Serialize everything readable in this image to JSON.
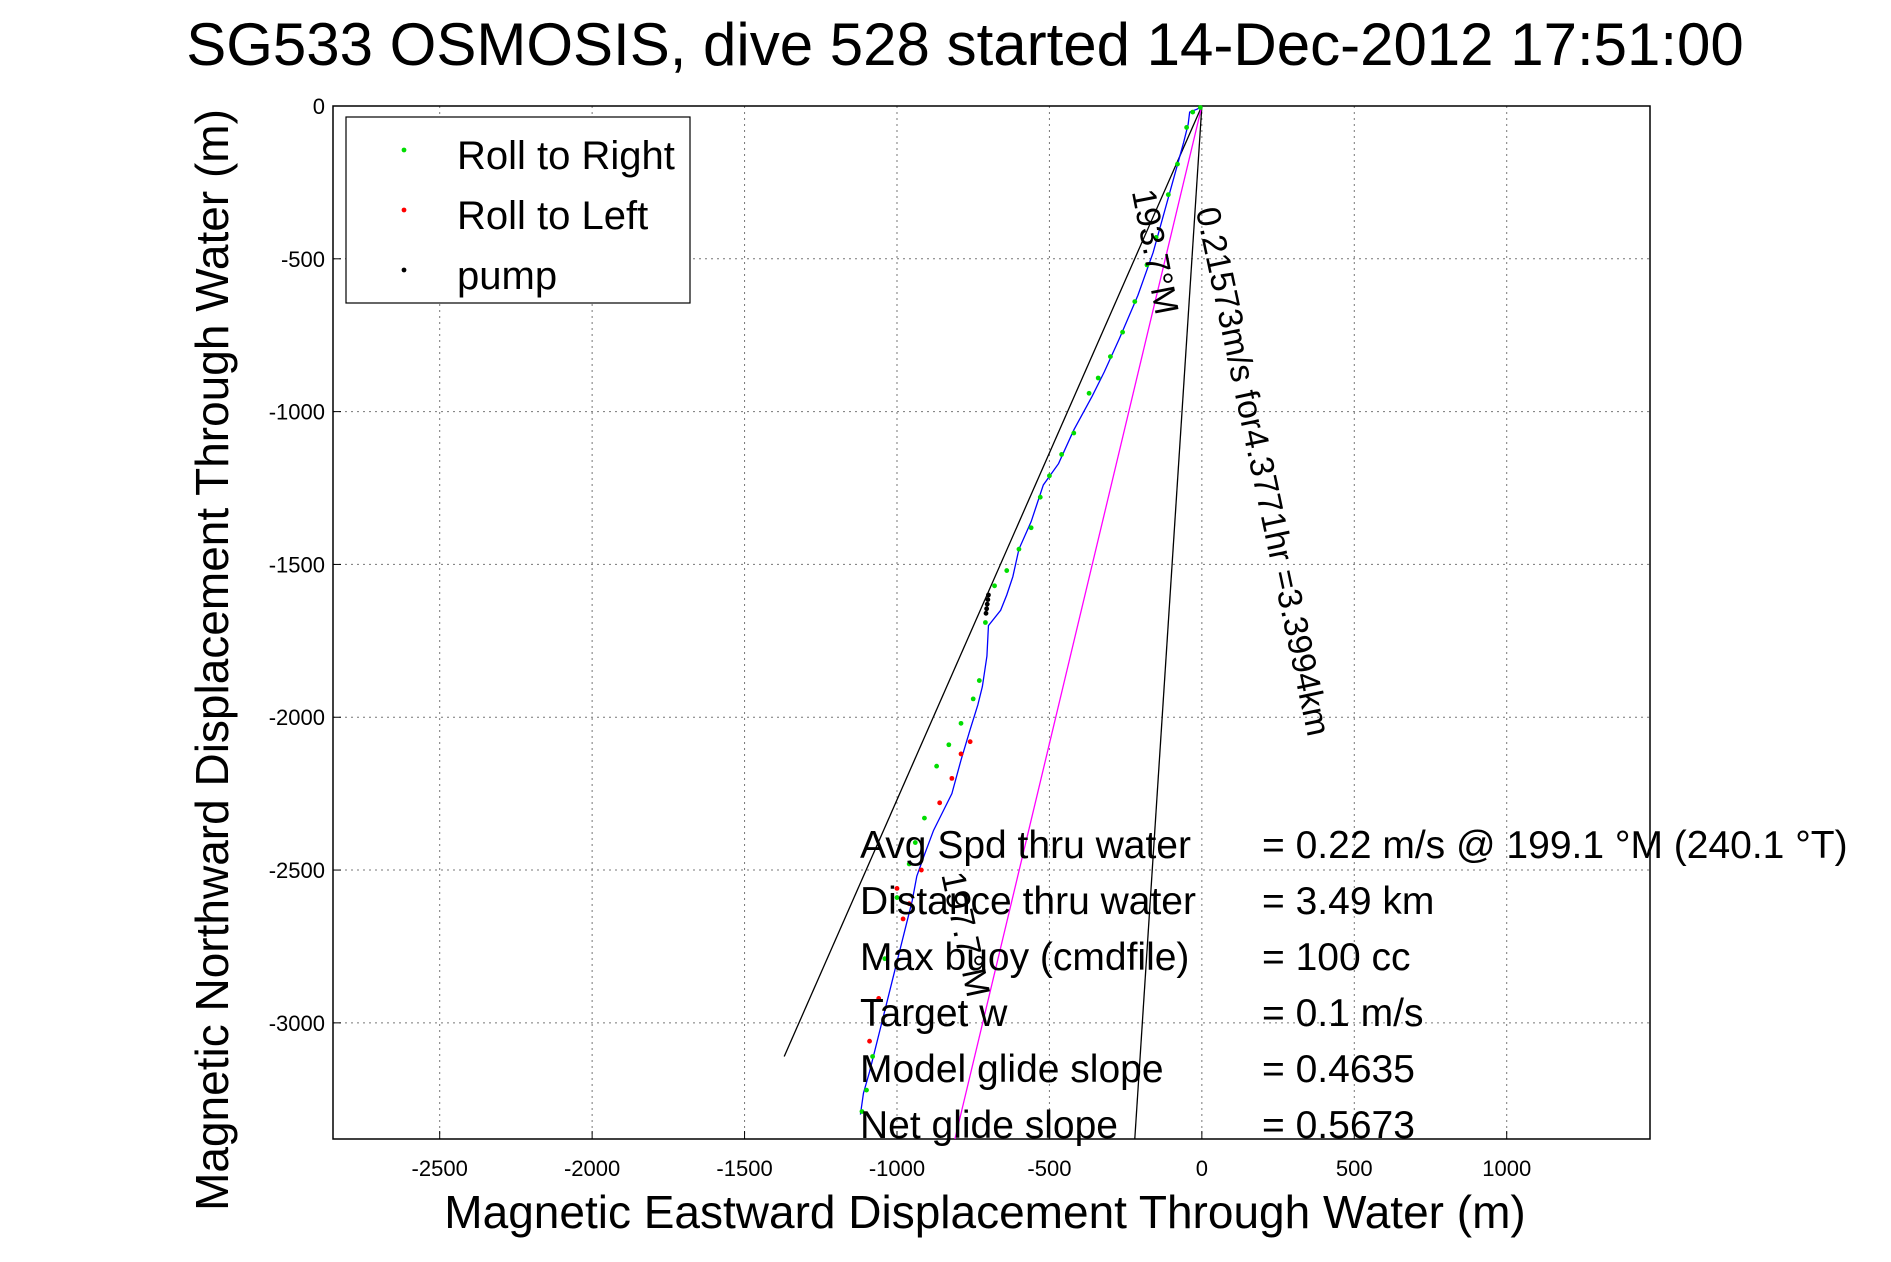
{
  "chart_data": {
    "type": "line",
    "title": "SG533 OSMOSIS, dive 528 started 14-Dec-2012 17:51:00",
    "xlabel": "Magnetic Eastward Displacement Through Water (m)",
    "ylabel": "Magnetic Northward Displacement Through Water (m)",
    "xlim": [
      -2850,
      1470
    ],
    "ylim": [
      -3380,
      0
    ],
    "xticks": [
      -2500,
      -2000,
      -1500,
      -1000,
      -500,
      0,
      500,
      1000
    ],
    "yticks": [
      0,
      -500,
      -1000,
      -1500,
      -2000,
      -2500,
      -3000
    ],
    "grid": true,
    "legend_position": "top-left",
    "legend": [
      {
        "label": "Roll to Right",
        "color": "#00dd00"
      },
      {
        "label": "Roll to Left",
        "color": "#ff0000"
      },
      {
        "label": "pump",
        "color": "#000000"
      }
    ],
    "series": [
      {
        "name": "track",
        "color": "#0000ff",
        "x": [
          0,
          -15,
          -40,
          -45,
          -60,
          -85,
          -110,
          -160,
          -210,
          -270,
          -320,
          -360,
          -420,
          -470,
          -520,
          -560,
          -600,
          -620,
          -640,
          -660,
          -700,
          -705,
          -720,
          -735,
          -760,
          -790,
          -820,
          -850,
          -880,
          -910,
          -935,
          -950,
          -970,
          -990,
          -1010,
          -1030,
          -1050,
          -1070,
          -1090,
          -1110,
          -1120
        ],
        "y": [
          0,
          -10,
          -20,
          -60,
          -120,
          -210,
          -300,
          -480,
          -620,
          -760,
          -870,
          -950,
          -1060,
          -1170,
          -1240,
          -1360,
          -1450,
          -1540,
          -1600,
          -1650,
          -1700,
          -1800,
          -1900,
          -1960,
          -2040,
          -2140,
          -2250,
          -2310,
          -2370,
          -2450,
          -2520,
          -2600,
          -2680,
          -2760,
          -2840,
          -2920,
          -3000,
          -3080,
          -3160,
          -3230,
          -3300
        ]
      },
      {
        "name": "Roll to Right",
        "color": "#00dd00",
        "x": [
          -5,
          -30,
          -50,
          -80,
          -110,
          -150,
          -180,
          -220,
          -260,
          -300,
          -340,
          -370,
          -420,
          -460,
          -500,
          -530,
          -560,
          -600,
          -640,
          -680,
          -710,
          -730,
          -750,
          -790,
          -830,
          -870,
          -910,
          -940,
          -960,
          -1000,
          -1040,
          -1080,
          -1100,
          -1115
        ],
        "y": [
          -5,
          -20,
          -70,
          -190,
          -290,
          -430,
          -520,
          -640,
          -740,
          -820,
          -890,
          -940,
          -1070,
          -1140,
          -1210,
          -1280,
          -1380,
          -1450,
          -1520,
          -1570,
          -1690,
          -1880,
          -1940,
          -2020,
          -2090,
          -2160,
          -2330,
          -2410,
          -2480,
          -2590,
          -2790,
          -3110,
          -3220,
          -3290
        ]
      },
      {
        "name": "Roll to Left",
        "color": "#ff0000",
        "x": [
          -1000,
          -980,
          -960,
          -920,
          -860,
          -820,
          -790,
          -760,
          -1060,
          -1090
        ],
        "y": [
          -2560,
          -2660,
          -2610,
          -2500,
          -2280,
          -2200,
          -2120,
          -2080,
          -2920,
          -3060
        ]
      },
      {
        "name": "pump",
        "color": "#000000",
        "x": [
          -700,
          -702,
          -704,
          -706,
          -708
        ],
        "y": [
          -1600,
          -1615,
          -1630,
          -1645,
          -1660
        ]
      }
    ],
    "reference_lines": [
      {
        "color": "#000000",
        "x": [
          0,
          -1370
        ],
        "y": [
          0,
          -3110
        ]
      },
      {
        "color": "#000000",
        "x": [
          0,
          -220
        ],
        "y": [
          0,
          -3380
        ]
      },
      {
        "color": "#ff00ff",
        "x": [
          0,
          -810
        ],
        "y": [
          0,
          -3380
        ]
      }
    ],
    "annotations": [
      {
        "text": "0.21573m/s for4.3771hr =3.3994km",
        "x": -20,
        "y": -340,
        "angle": 78
      },
      {
        "text": "193.7°M",
        "x": -230,
        "y": -280,
        "angle": 79
      },
      {
        "text": "197.7°M",
        "x": -855,
        "y": -2515,
        "angle": 78
      }
    ],
    "stats": [
      {
        "label": "Avg Spd thru water",
        "value": "=  0.22 m/s @ 199.1 °M (240.1 °T)"
      },
      {
        "label": "Distance thru water",
        "value": "=  3.49 km"
      },
      {
        "label": "Max buoy (cmdfile)",
        "value": "= 100 cc"
      },
      {
        "label": "Target w",
        "value": "= 0.1 m/s"
      },
      {
        "label": "Model glide slope",
        "value": "= 0.4635"
      },
      {
        "label": "Net glide slope",
        "value": "= 0.5673"
      }
    ]
  }
}
